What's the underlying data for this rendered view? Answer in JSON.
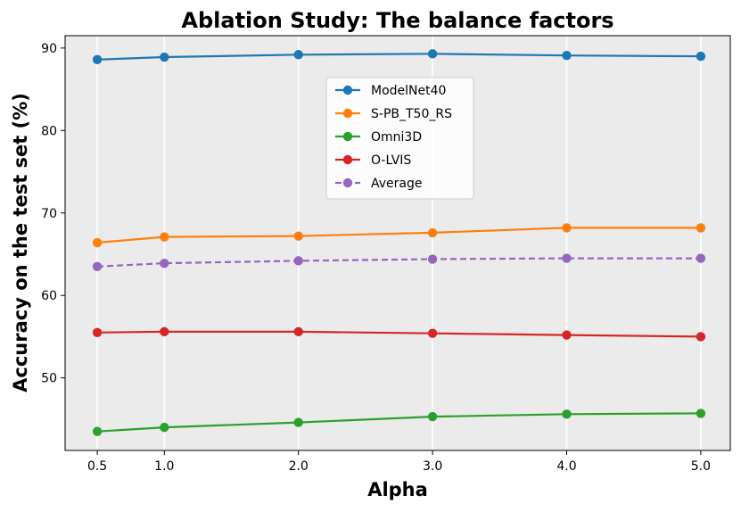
{
  "chart_data": {
    "type": "line",
    "title": "Ablation Study: The balance factors",
    "xlabel": "Alpha",
    "ylabel": "Accuracy on the test set (%)",
    "x": [
      0.5,
      1.0,
      2.0,
      3.0,
      4.0,
      5.0
    ],
    "x_tick_labels": [
      "0.5",
      "1.0",
      "2.0",
      "3.0",
      "4.0",
      "5.0"
    ],
    "xlim": [
      0.26,
      5.22
    ],
    "ylim": [
      41.2,
      91.5
    ],
    "y_ticks": [
      50,
      60,
      70,
      80,
      90
    ],
    "y_tick_labels": [
      "50",
      "60",
      "70",
      "80",
      "90"
    ],
    "grid": "vertical",
    "legend_position": "upper-center",
    "series": [
      {
        "name": "ModelNet40",
        "values": [
          88.6,
          88.9,
          89.2,
          89.3,
          89.1,
          89.0
        ],
        "color": "#1f77b4",
        "style": "solid"
      },
      {
        "name": "S-PB_T50_RS",
        "values": [
          66.4,
          67.1,
          67.2,
          67.6,
          68.2,
          68.2
        ],
        "color": "#ff7f0e",
        "style": "solid"
      },
      {
        "name": "Omni3D",
        "values": [
          43.5,
          44.0,
          44.6,
          45.3,
          45.6,
          45.7
        ],
        "color": "#2ca02c",
        "style": "solid"
      },
      {
        "name": "O-LVIS",
        "values": [
          55.5,
          55.6,
          55.6,
          55.4,
          55.2,
          55.0
        ],
        "color": "#d62728",
        "style": "solid"
      },
      {
        "name": "Average",
        "values": [
          63.5,
          63.9,
          64.2,
          64.4,
          64.5,
          64.5
        ],
        "color": "#9467bd",
        "style": "dashed"
      }
    ]
  }
}
